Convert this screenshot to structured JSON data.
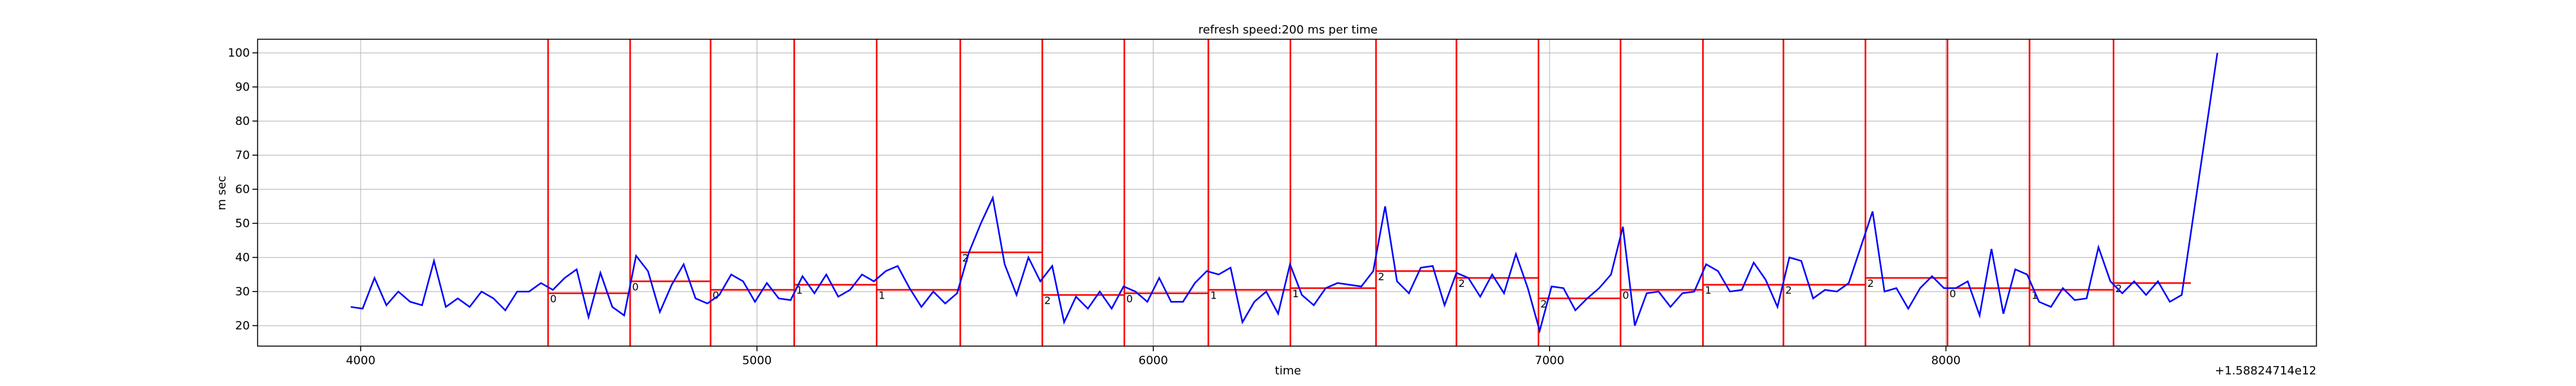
{
  "chart_data": {
    "type": "line",
    "title": "refresh speed:200 ms per time",
    "x_label": "time",
    "y_label": "m sec",
    "x_offset_label": "+1.58824714e12",
    "xlim": [
      3740,
      8935
    ],
    "ylim": [
      14,
      104
    ],
    "xticks": [
      4000,
      5000,
      6000,
      7000,
      8000
    ],
    "yticks": [
      20,
      30,
      40,
      50,
      60,
      70,
      80,
      90,
      100
    ],
    "grid": true,
    "x": [
      3975,
      4005,
      4035,
      4065,
      4095,
      4125,
      4155,
      4185,
      4215,
      4245,
      4275,
      4305,
      4335,
      4365,
      4395,
      4425,
      4455,
      4485,
      4515,
      4545,
      4575,
      4605,
      4635,
      4665,
      4695,
      4725,
      4755,
      4785,
      4815,
      4845,
      4875,
      4905,
      4935,
      4965,
      4995,
      5025,
      5055,
      5085,
      5115,
      5145,
      5175,
      5205,
      5235,
      5265,
      5295,
      5325,
      5355,
      5385,
      5415,
      5445,
      5475,
      5505,
      5535,
      5565,
      5595,
      5625,
      5655,
      5685,
      5715,
      5745,
      5775,
      5805,
      5835,
      5865,
      5895,
      5925,
      5955,
      5985,
      6015,
      6045,
      6075,
      6105,
      6135,
      6165,
      6195,
      6225,
      6255,
      6285,
      6315,
      6345,
      6375,
      6405,
      6435,
      6465,
      6495,
      6525,
      6555,
      6585,
      6615,
      6645,
      6675,
      6705,
      6735,
      6765,
      6795,
      6825,
      6855,
      6885,
      6915,
      6945,
      6975,
      7005,
      7035,
      7065,
      7095,
      7125,
      7155,
      7185,
      7215,
      7245,
      7275,
      7305,
      7335,
      7365,
      7395,
      7425,
      7455,
      7485,
      7515,
      7545,
      7575,
      7605,
      7635,
      7665,
      7695,
      7725,
      7755,
      7785,
      7815,
      7845,
      7875,
      7905,
      7935,
      7965,
      7995,
      8025,
      8055,
      8085,
      8115,
      8145,
      8175,
      8205,
      8235,
      8265,
      8295,
      8325,
      8355,
      8385,
      8415,
      8445,
      8475,
      8505,
      8535,
      8565,
      8595,
      8625,
      8655,
      8685
    ],
    "series": [
      {
        "color": "#0000ff",
        "values": [
          25.5,
          25,
          34,
          26,
          30,
          27,
          26,
          39,
          25.5,
          28,
          25.5,
          30,
          28,
          24.5,
          30,
          30,
          32.5,
          30.5,
          34,
          36.5,
          22.5,
          35.5,
          25.5,
          23,
          40.5,
          36,
          24,
          32,
          38,
          28,
          26.5,
          29,
          35,
          33,
          27,
          32.5,
          28,
          27.5,
          34.5,
          29.5,
          35,
          28.5,
          30.5,
          35,
          33,
          36,
          37.5,
          31,
          25.5,
          30,
          26.5,
          29.5,
          41.5,
          50,
          57.5,
          38,
          29,
          40,
          33,
          37.5,
          21,
          28.5,
          25,
          30,
          25,
          31.5,
          30,
          27,
          34,
          27,
          27,
          32.5,
          36,
          35,
          37,
          21,
          27,
          30,
          23.5,
          38,
          29,
          26,
          31,
          32.5,
          32,
          31.5,
          36,
          55,
          33,
          29.5,
          37,
          37.5,
          26,
          35.5,
          34,
          28.5,
          35,
          29.5,
          41,
          31,
          18.5,
          31.5,
          31,
          24.5,
          28,
          31,
          35,
          49,
          20,
          29.5,
          30,
          25.5,
          29.5,
          30,
          38,
          36,
          30,
          30.5,
          38.5,
          33.5,
          25.5,
          40,
          39,
          28,
          30.5,
          30,
          32.5,
          43,
          53.5,
          30,
          31,
          25,
          31,
          34.5,
          31,
          31,
          33,
          23,
          42.5,
          23.5,
          36.5,
          35,
          27,
          25.5,
          31,
          27.5,
          28,
          43,
          33,
          29.5,
          33,
          29,
          33,
          27,
          29,
          52.7,
          76.3,
          100
        ]
      }
    ],
    "segments": {
      "color": "#ff0000",
      "x0": [
        4473,
        4680,
        4883,
        5094,
        5302,
        5513,
        5720,
        5927,
        6139,
        6346,
        6562,
        6765,
        6972,
        7179,
        7387,
        7590,
        7797,
        8004,
        8211,
        8423
      ],
      "x1": [
        4680,
        4883,
        5094,
        5302,
        5513,
        5720,
        5927,
        6139,
        6346,
        6562,
        6765,
        6972,
        7179,
        7387,
        7590,
        7797,
        8004,
        8211,
        8423,
        8618
      ],
      "values": [
        29.5,
        33,
        30.5,
        32,
        30.5,
        41.5,
        29,
        29.5,
        30.5,
        31,
        36,
        34,
        28,
        30.5,
        32,
        32,
        34,
        31,
        30.5,
        32.5
      ],
      "labels": [
        "0",
        "0",
        "0",
        "1",
        "1",
        "2",
        "2",
        "0",
        "1",
        "1",
        "2",
        "2",
        "2",
        "0",
        "1",
        "2",
        "2",
        "0",
        "1",
        "2"
      ]
    }
  }
}
